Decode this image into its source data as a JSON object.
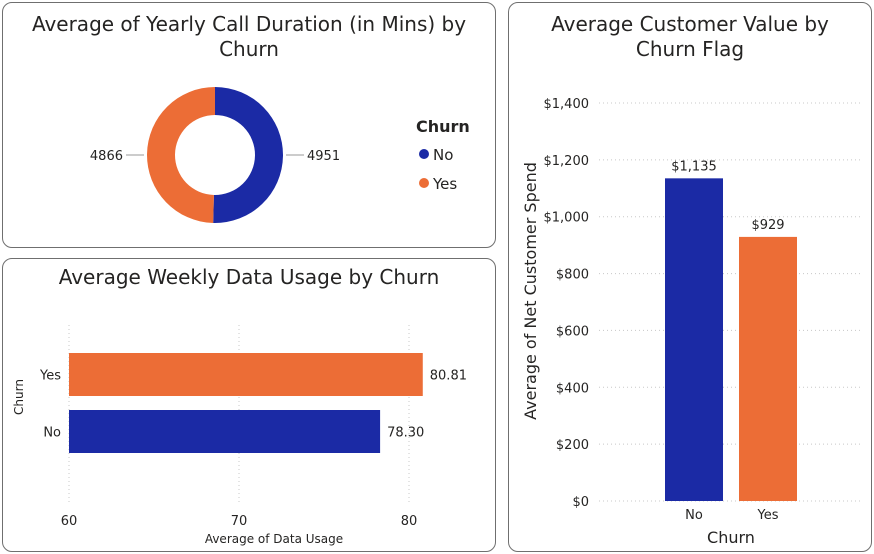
{
  "colors": {
    "no": "#1b2aa5",
    "yes": "#ec6d36",
    "grid": "#c8c8c8",
    "text": "#252423",
    "axis": "#605e5c"
  },
  "chart_data": [
    {
      "type": "pie",
      "donut": true,
      "title_line1": "Average of Yearly Call Duration (in Mins) by",
      "title_line2": "Churn",
      "legend_title": "Churn",
      "legend_position": "right",
      "slices": [
        {
          "label": "No",
          "value": 4951,
          "value_label": "4951",
          "color": "#1b2aa5"
        },
        {
          "label": "Yes",
          "value": 4866,
          "value_label": "4866",
          "color": "#ec6d36"
        }
      ]
    },
    {
      "type": "bar",
      "orientation": "horizontal",
      "title": "Average Weekly Data Usage by Churn",
      "xlabel": "Average of Data Usage",
      "ylabel": "Churn",
      "xlim": [
        60,
        83
      ],
      "xticks": [
        "60",
        "70",
        "80"
      ],
      "xtick_values": [
        60,
        70,
        80
      ],
      "grid": true,
      "categories": [
        "Yes",
        "No"
      ],
      "values": [
        80.81,
        78.3
      ],
      "value_labels": [
        "80.81",
        "78.30"
      ],
      "colors": [
        "#ec6d36",
        "#1b2aa5"
      ]
    },
    {
      "type": "bar",
      "orientation": "vertical",
      "title_line1": "Average Customer Value by",
      "title_line2": "Churn Flag",
      "xlabel": "Churn",
      "ylabel": "Average of Net Customer Spend",
      "ylim": [
        0,
        1400
      ],
      "yticks": [
        "$0",
        "$200",
        "$400",
        "$600",
        "$800",
        "$1,000",
        "$1,200",
        "$1,400"
      ],
      "ytick_values": [
        0,
        200,
        400,
        600,
        800,
        1000,
        1200,
        1400
      ],
      "grid": true,
      "categories": [
        "No",
        "Yes"
      ],
      "values": [
        1135,
        929
      ],
      "value_labels": [
        "$1,135",
        "$929"
      ],
      "colors": [
        "#1b2aa5",
        "#ec6d36"
      ]
    }
  ]
}
